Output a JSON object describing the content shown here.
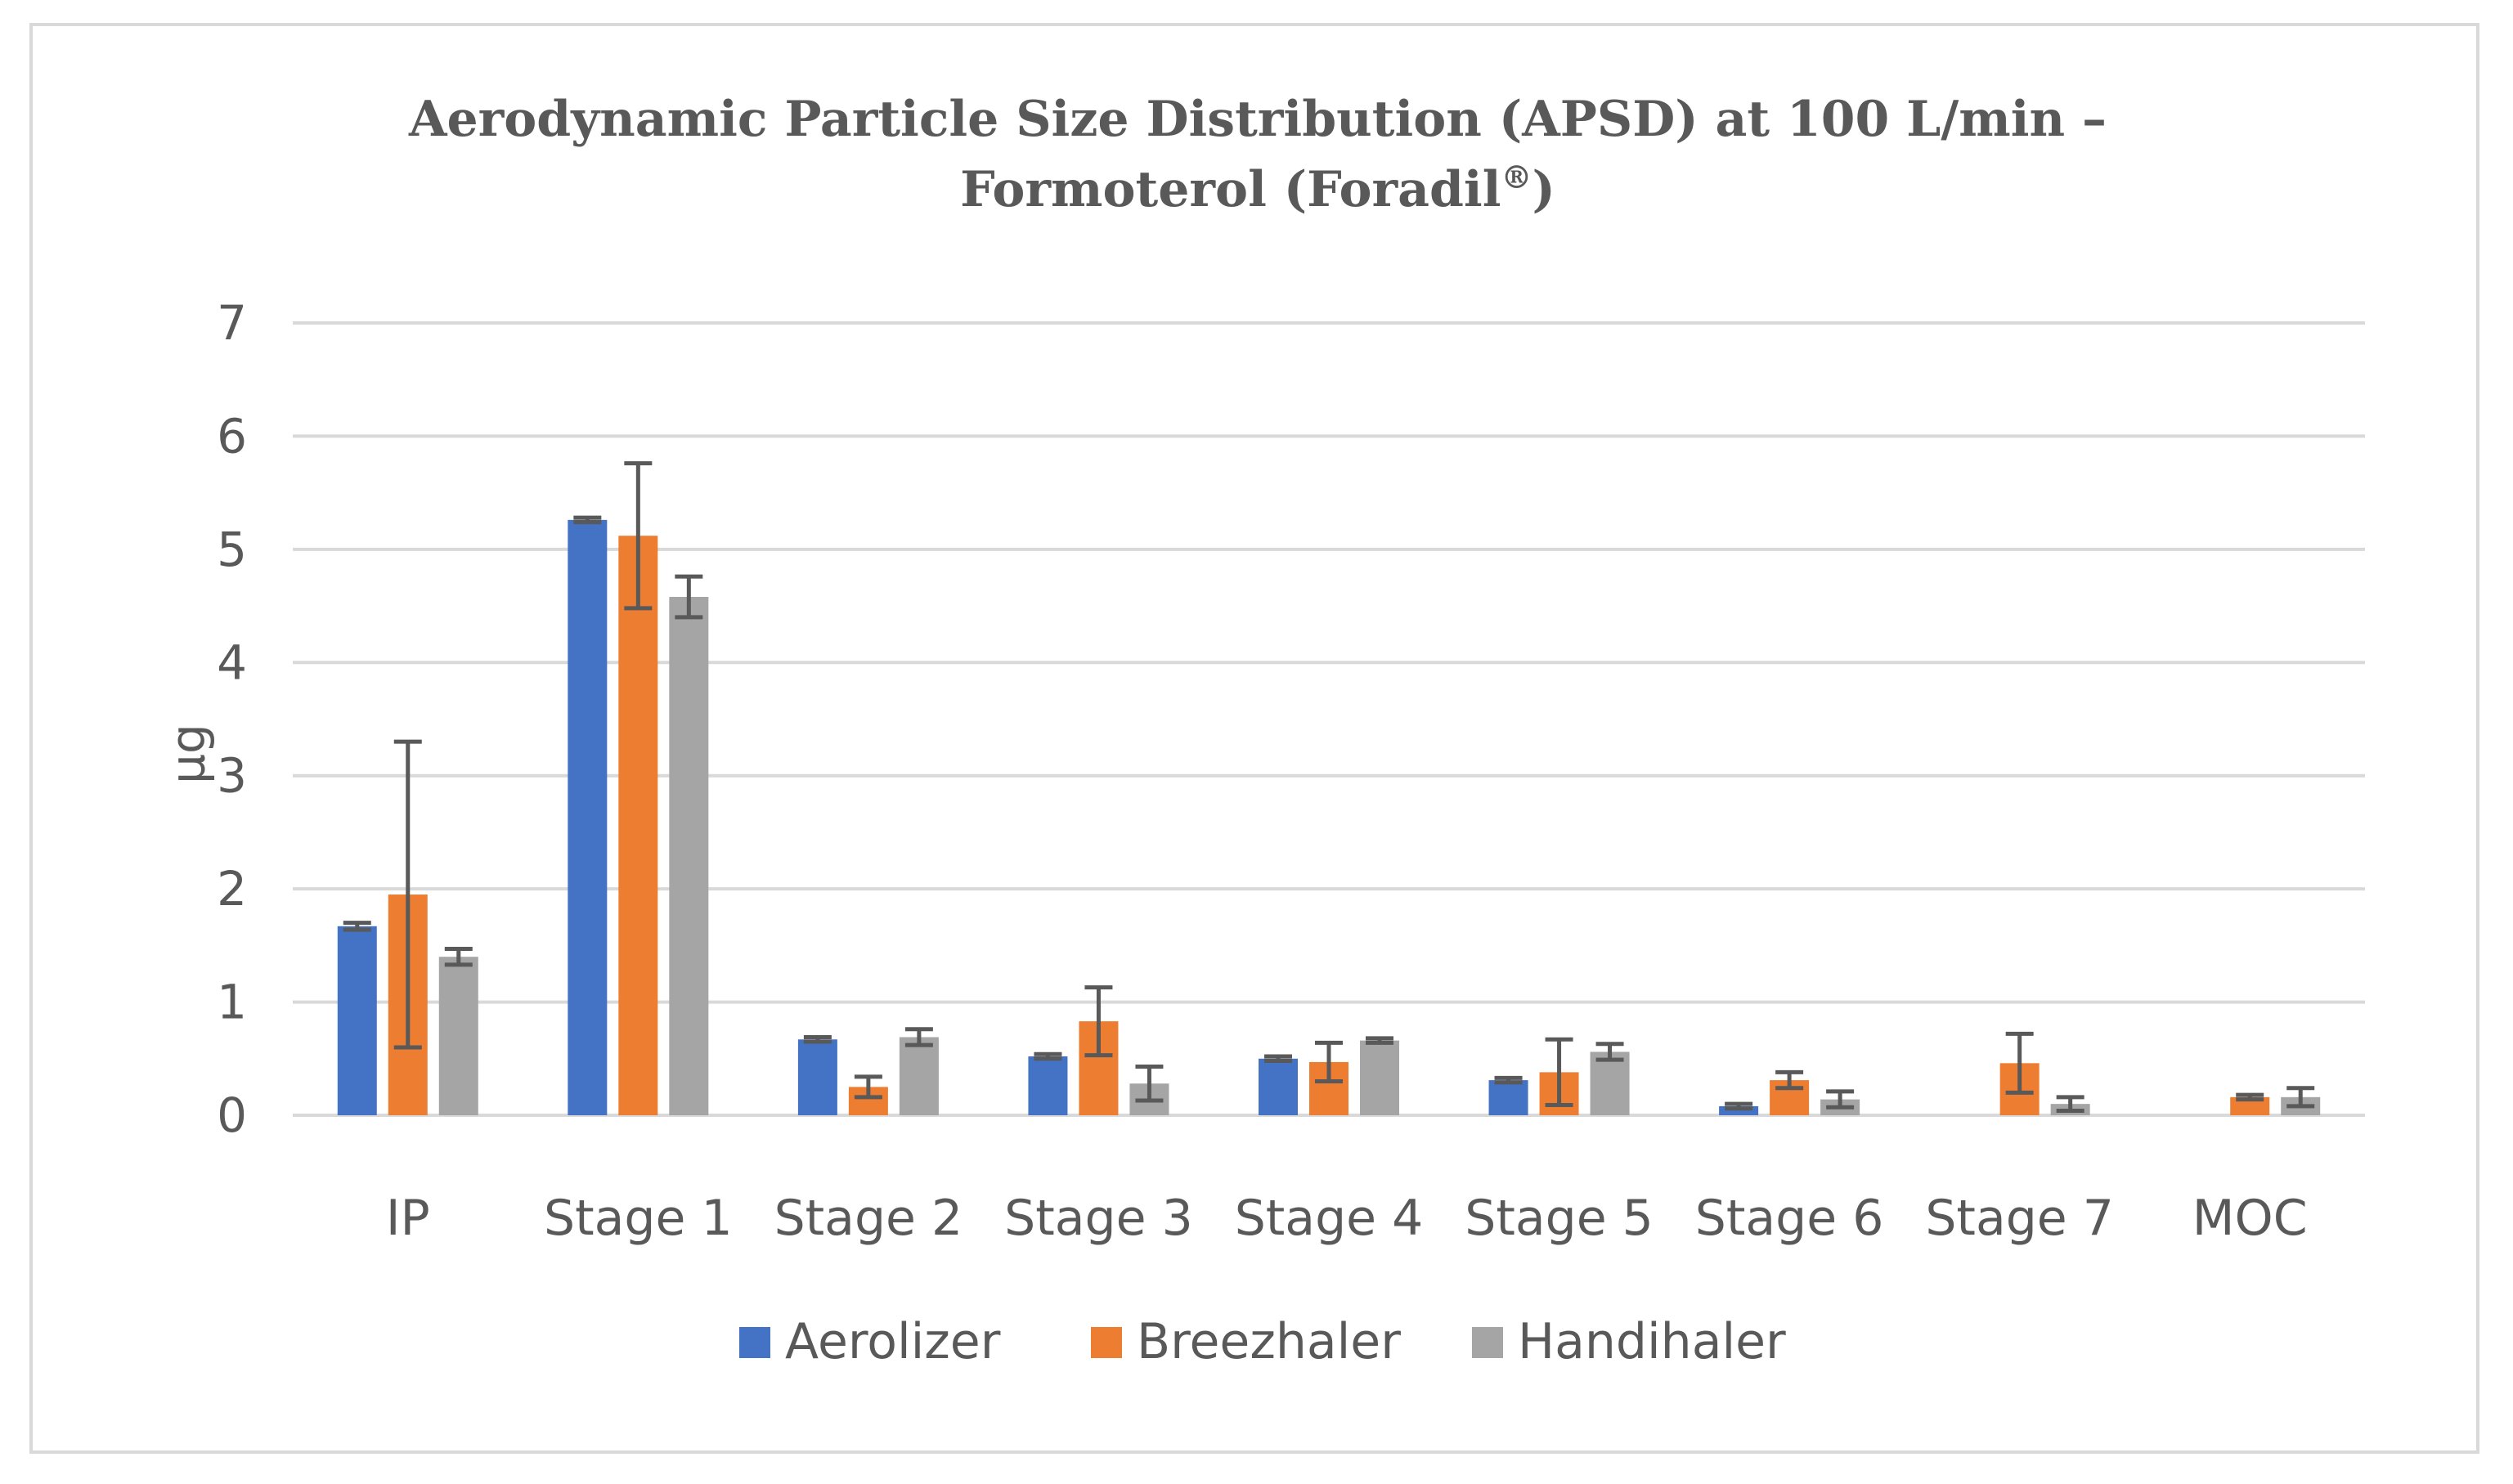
{
  "chart_data": {
    "type": "bar",
    "title_lines": [
      "Aerodynamic Particle Size Distribution (APSD) at 100 L/min –",
      "Formoterol (Foradil"
    ],
    "title_superscript": "®",
    "title_closing": ")",
    "xlabel": "",
    "ylabel": "µg",
    "ylim": [
      0,
      7
    ],
    "yticks": [
      0,
      1,
      2,
      3,
      4,
      5,
      6,
      7
    ],
    "grid": true,
    "legend_position": "bottom",
    "categories": [
      "IP",
      "Stage 1",
      "Stage 2",
      "Stage 3",
      "Stage 4",
      "Stage 5",
      "Stage 6",
      "Stage 7",
      "MOC"
    ],
    "series": [
      {
        "name": "Aerolizer",
        "color": "#4472c4",
        "values": [
          1.67,
          5.26,
          0.67,
          0.52,
          0.5,
          0.31,
          0.08,
          0,
          0
        ],
        "errors": [
          0.03,
          0.02,
          0.02,
          0.02,
          0.02,
          0.02,
          0.02,
          0,
          0
        ]
      },
      {
        "name": "Breezhaler",
        "color": "#ed7d31",
        "values": [
          1.95,
          5.12,
          0.25,
          0.83,
          0.47,
          0.38,
          0.31,
          0.46,
          0.16
        ],
        "errors": [
          1.35,
          0.64,
          0.09,
          0.3,
          0.17,
          0.29,
          0.07,
          0.26,
          0.02
        ]
      },
      {
        "name": "Handihaler",
        "color": "#a5a5a5",
        "values": [
          1.4,
          4.58,
          0.69,
          0.28,
          0.66,
          0.56,
          0.14,
          0.1,
          0.16
        ],
        "errors": [
          0.07,
          0.18,
          0.07,
          0.15,
          0.02,
          0.07,
          0.07,
          0.06,
          0.08
        ]
      }
    ]
  }
}
